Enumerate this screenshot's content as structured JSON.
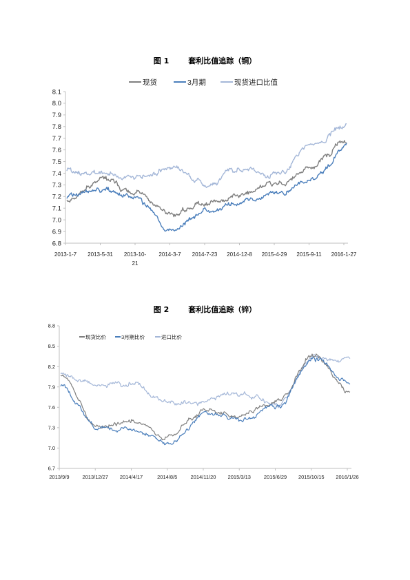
{
  "charts": [
    {
      "figure_label": "图 1",
      "figure_title": "套利比值追踪（铜）",
      "chart_data": {
        "type": "line",
        "x": [
          "2013-1-7",
          "2013-5-31",
          "2013-10-21",
          "2014-3-7",
          "2014-7-23",
          "2014-12-8",
          "2015-4-29",
          "2015-9-11",
          "2016-1-27"
        ],
        "x_tick_labels": [
          "2013-1-7",
          "2013-5-31",
          "2013-10-\n21",
          "2014-3-7",
          "2014-7-23",
          "2014-12-8",
          "2015-4-29",
          "2015-9-11",
          "2016-1-27"
        ],
        "ylim": [
          6.8,
          8.1
        ],
        "y_ticks": [
          "6.8",
          "6.9",
          "7.0",
          "7.1",
          "7.2",
          "7.3",
          "7.4",
          "7.5",
          "7.6",
          "7.7",
          "7.8",
          "7.9",
          "8.0",
          "8.1"
        ],
        "legend_position": "top",
        "series": [
          {
            "name": "现货",
            "color": "#7f7f7f",
            "values": [
              7.18,
              7.34,
              7.22,
              7.04,
              7.16,
              7.22,
              7.3,
              7.45,
              7.66
            ]
          },
          {
            "name": "3月期",
            "color": "#4a7ebb",
            "values": [
              7.2,
              7.26,
              7.16,
              6.92,
              7.08,
              7.14,
              7.22,
              7.33,
              7.62
            ]
          },
          {
            "name": "现货进口比值",
            "color": "#a4b7d8",
            "values": [
              7.42,
              7.37,
              7.35,
              7.46,
              7.3,
              7.46,
              7.38,
              7.64,
              7.82
            ]
          }
        ]
      }
    },
    {
      "figure_label": "图 2",
      "figure_title": "套利比值追踪（锌）",
      "chart_data": {
        "type": "line",
        "x": [
          "2013/9/9",
          "2013/12/27",
          "2014/4/17",
          "2014/8/5",
          "2014/11/20",
          "2015/3/13",
          "2015/6/29",
          "2015/10/15",
          "2016/1/26"
        ],
        "ylim": [
          6.7,
          8.8
        ],
        "y_ticks": [
          "6.7",
          "7.0",
          "7.3",
          "7.6",
          "7.9",
          "8.2",
          "8.5",
          "8.8"
        ],
        "legend_position": "top-left",
        "series": [
          {
            "name": "现货比价",
            "color": "#7f7f7f",
            "values": [
              8.08,
              7.3,
              7.36,
              7.16,
              7.55,
              7.48,
              7.66,
              8.38,
              7.8
            ]
          },
          {
            "name": "3月期比价",
            "color": "#4a7ebb",
            "values": [
              7.92,
              7.3,
              7.26,
              7.12,
              7.5,
              7.42,
              7.62,
              8.3,
              7.92
            ]
          },
          {
            "name": "进口比价",
            "color": "#a4b7d8",
            "values": [
              8.08,
              7.94,
              7.94,
              7.7,
              7.68,
              7.8,
              7.66,
              8.3,
              8.28
            ]
          }
        ]
      }
    }
  ]
}
